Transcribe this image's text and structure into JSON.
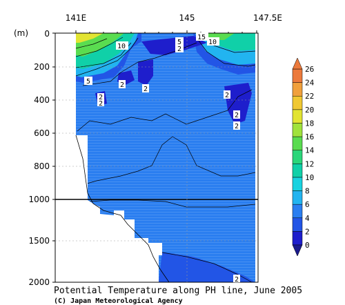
{
  "chart_data": {
    "type": "heatmap",
    "title": "Potential Temperature along PH line, June 2005",
    "credit": "(C) Japan Meteorological Agency",
    "x_ticks": [
      "141E",
      "145",
      "147.5E"
    ],
    "x_range": [
      141,
      147.5
    ],
    "y_unit_label": "(m)",
    "y_ticks_upper": [
      0,
      200,
      400,
      600,
      800,
      1000
    ],
    "y_ticks_lower": [
      1500,
      2000
    ],
    "y_range": [
      0,
      2000
    ],
    "y_axis_break_depth": 1000,
    "colorbar": {
      "levels": [
        0,
        2,
        4,
        6,
        8,
        10,
        12,
        14,
        16,
        18,
        20,
        22,
        24,
        26
      ],
      "colors": [
        "#1e1ecc",
        "#2255e6",
        "#2a7ef0",
        "#22b4f0",
        "#18d2e0",
        "#10d0a8",
        "#2bd67a",
        "#5adc50",
        "#a0e23c",
        "#e2e432",
        "#f0c832",
        "#f0a03c",
        "#ec7a3c"
      ]
    },
    "contour_labels": [
      "10",
      "5",
      "5",
      "2",
      "15",
      "10",
      "5",
      "2",
      "2",
      "2",
      "2",
      "2",
      "2",
      "2",
      "2"
    ],
    "depth_profile_columns": [
      {
        "x": 141.6,
        "bands": [
          [
            2,
            60,
            16
          ],
          [
            60,
            110,
            12
          ],
          [
            110,
            150,
            8
          ],
          [
            150,
            230,
            5
          ],
          [
            230,
            320,
            3
          ],
          [
            320,
            2000,
            2
          ]
        ]
      },
      {
        "x": 143.0,
        "bands": [
          [
            2,
            50,
            14
          ],
          [
            50,
            110,
            10
          ],
          [
            110,
            170,
            6
          ],
          [
            170,
            2000,
            2
          ]
        ]
      },
      {
        "x": 144.0,
        "bands": [
          [
            2,
            60,
            4
          ],
          [
            60,
            300,
            2
          ],
          [
            300,
            2000,
            2
          ]
        ]
      },
      {
        "x": 145.5,
        "bands": [
          [
            2,
            20,
            16
          ],
          [
            20,
            70,
            12
          ],
          [
            70,
            140,
            6
          ],
          [
            140,
            2000,
            2
          ]
        ]
      },
      {
        "x": 147.0,
        "bands": [
          [
            2,
            60,
            8
          ],
          [
            60,
            150,
            4
          ],
          [
            150,
            2000,
            2
          ]
        ]
      }
    ]
  }
}
